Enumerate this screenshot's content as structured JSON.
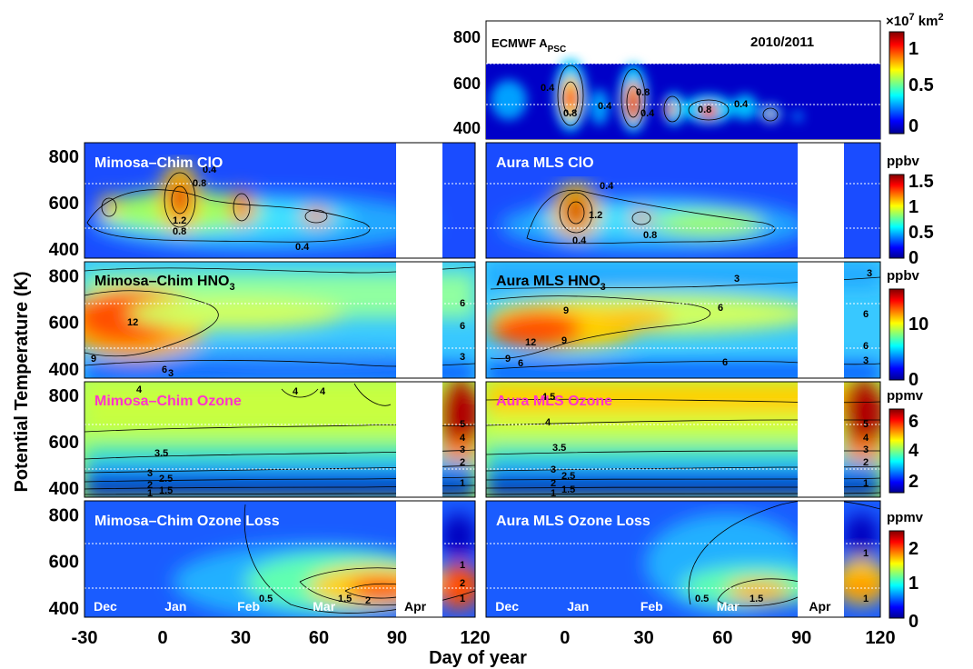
{
  "chart_data": {
    "type": "heatmap",
    "ylabel": "Potential Temperature (K)",
    "xlabel": "Day of year",
    "x_ticks": [
      "-30",
      "0",
      "30",
      "60",
      "90",
      "120"
    ],
    "x_tick_values": [
      -30,
      0,
      30,
      60,
      90,
      120
    ],
    "xlim": [
      -30,
      120
    ],
    "ylim": [
      360,
      860
    ],
    "y_ticks": [
      "400",
      "600",
      "800"
    ],
    "y_tick_values": [
      400,
      600,
      800
    ],
    "months": [
      "Dec",
      "Jan",
      "Feb",
      "Mar",
      "Apr"
    ],
    "month_days": [
      -22,
      5,
      33,
      62,
      97
    ],
    "data_gap_days": [
      88,
      106
    ],
    "reference_lines_K": [
      480,
      675
    ],
    "top_panel": {
      "label_main": "ECMWF A",
      "label_sub": "PSC",
      "season": "2010/2011",
      "colorbar_unit_prefix": "×10",
      "colorbar_unit_exp": "7",
      "colorbar_unit_suffix": " km",
      "colorbar_unit_exp2": "2",
      "colorbar_ticks": [
        "0",
        "0.5",
        "1"
      ],
      "contour_labels": [
        "0.4",
        "0.8",
        "0.4",
        "0.8",
        "0.4",
        "0.8",
        "0.4"
      ]
    },
    "rows": [
      {
        "unit": "ppbv",
        "colorbar_ticks": [
          "0",
          "0.5",
          "1",
          "1.5"
        ],
        "left_title": "Mimosa–Chim ClO",
        "right_title": "Aura MLS ClO",
        "title_color": "#ffffff",
        "contour_labels_left": [
          "0.4",
          "0.8",
          "1.2",
          "0.8",
          "0.4"
        ],
        "contour_labels_right": [
          "0.4",
          "1.2",
          "0.8",
          "0.4"
        ]
      },
      {
        "unit": "ppbv",
        "colorbar_ticks": [
          "0",
          "10"
        ],
        "left_title": "Mimosa–Chim HNO",
        "left_title_sub": "3",
        "right_title": "Aura MLS HNO",
        "right_title_sub": "3",
        "title_color": "#000000",
        "contour_labels_left": [
          "12",
          "9",
          "6",
          "3",
          "6",
          "6",
          "3"
        ],
        "contour_labels_right": [
          "3",
          "9",
          "6",
          "12",
          "9",
          "9",
          "6",
          "6",
          "6",
          "6",
          "3",
          "3"
        ]
      },
      {
        "unit": "ppmv",
        "colorbar_ticks": [
          "2",
          "4",
          "6"
        ],
        "left_title": "Mimosa–Chim Ozone",
        "right_title": "Aura MLS Ozone",
        "title_color": "#ff33cc",
        "contour_labels_left": [
          "4",
          "4",
          "4",
          "3.5",
          "3",
          "2.5",
          "2",
          "1.5",
          "1",
          "5",
          "4",
          "3",
          "2",
          "1"
        ],
        "contour_labels_right": [
          "4.5",
          "4",
          "3.5",
          "3",
          "2.5",
          "2",
          "1.5",
          "1",
          "5",
          "4",
          "3",
          "2",
          "1"
        ]
      },
      {
        "unit": "ppmv",
        "colorbar_ticks": [
          "0",
          "1",
          "2"
        ],
        "left_title": "Mimosa–Chim Ozone Loss",
        "right_title": "Aura MLS Ozone Loss",
        "title_color": "#ffffff",
        "contour_labels_left": [
          "0.5",
          "1.5",
          "2",
          "1",
          "2",
          "1"
        ],
        "contour_labels_right": [
          "0.5",
          "1.5",
          "1",
          "1"
        ]
      }
    ]
  }
}
